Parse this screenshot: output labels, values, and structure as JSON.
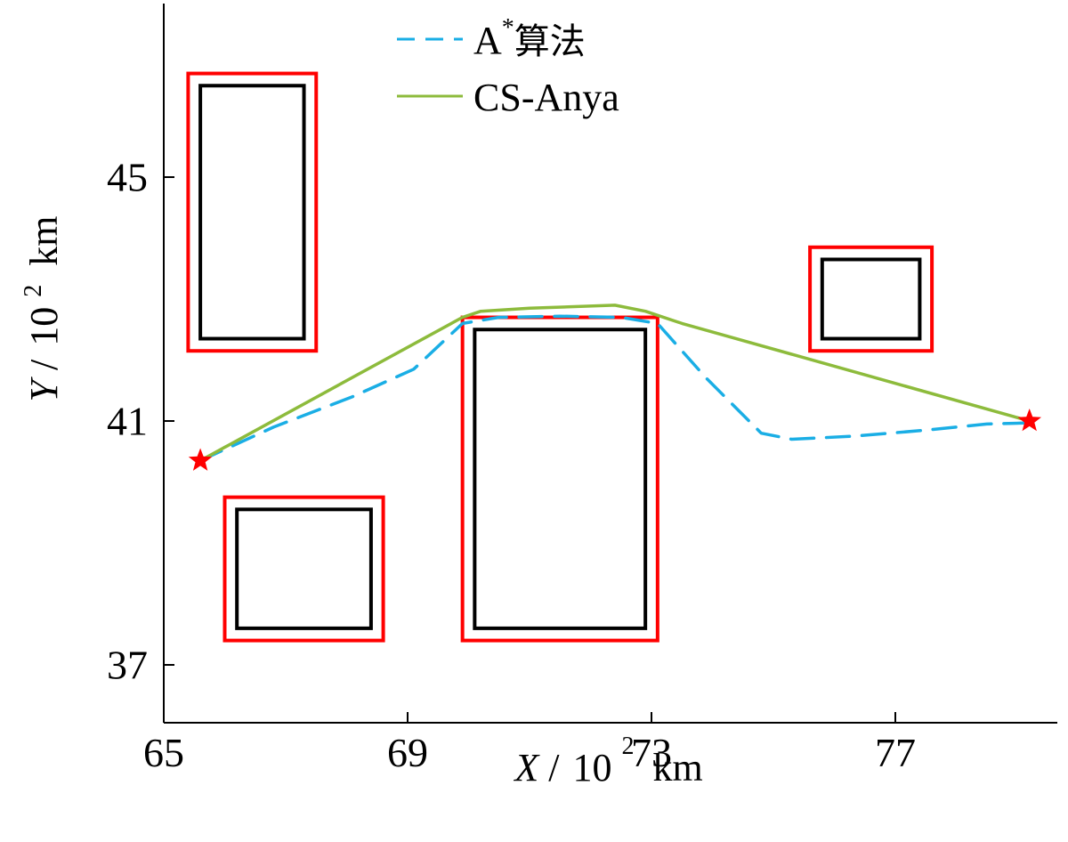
{
  "chart_data": {
    "type": "line",
    "xlabel": {
      "var": "X",
      "sep": "/",
      "unit_base": "10",
      "unit_exp": "2",
      "unit": "km"
    },
    "ylabel": {
      "var": "Y",
      "sep": "/",
      "unit_base": "10",
      "unit_exp": "2",
      "unit": "km"
    },
    "xlim": [
      65,
      80
    ],
    "ylim": [
      36,
      48
    ],
    "x_ticks": [
      "65",
      "69",
      "73",
      "77"
    ],
    "y_ticks": [
      "37",
      "41",
      "45"
    ],
    "x_tick_values": [
      65,
      69,
      73,
      77
    ],
    "y_tick_values": [
      37,
      41,
      45
    ],
    "legend": {
      "position": "top-center"
    },
    "series": [
      {
        "name": "A",
        "name_sup": "*",
        "name_suffix": "算法",
        "color": "#1aaee5",
        "style": "dashed",
        "x": [
          65.6,
          66.8,
          68.1,
          69.1,
          69.9,
          70.5,
          71.5,
          72.5,
          73.1,
          73.9,
          74.8,
          75.3,
          76.3,
          77.5,
          78.5,
          79.2
        ],
        "y": [
          40.35,
          40.9,
          41.4,
          41.85,
          42.6,
          42.7,
          42.72,
          42.7,
          42.6,
          41.7,
          40.8,
          40.7,
          40.75,
          40.85,
          40.95,
          40.97
        ]
      },
      {
        "name": "CS-Anya",
        "color": "#8dbb3c",
        "style": "solid",
        "x": [
          65.6,
          69.9,
          70.2,
          71.0,
          72.4,
          72.9,
          73.5,
          79.2
        ],
        "y": [
          40.35,
          42.7,
          42.8,
          42.85,
          42.9,
          42.8,
          42.6,
          41.0
        ]
      }
    ],
    "obstacles": [
      {
        "x": [
          65.6,
          67.3
        ],
        "y": [
          42.35,
          46.5
        ]
      },
      {
        "x": [
          66.2,
          68.4
        ],
        "y": [
          37.6,
          39.55
        ]
      },
      {
        "x": [
          70.1,
          72.9
        ],
        "y": [
          37.6,
          42.5
        ]
      },
      {
        "x": [
          75.8,
          77.4
        ],
        "y": [
          42.35,
          43.65
        ]
      }
    ],
    "obstacle_margin": {
      "x": 0.2,
      "y": 0.2
    },
    "start": {
      "x": 65.6,
      "y": 40.35
    },
    "goal": {
      "x": 79.2,
      "y": 41.0
    },
    "colors": {
      "obstacle": "#000000",
      "safety_boundary": "#ff0000",
      "endpoint_marker": "#ff0000",
      "axis": "#000000"
    },
    "grid": false
  }
}
